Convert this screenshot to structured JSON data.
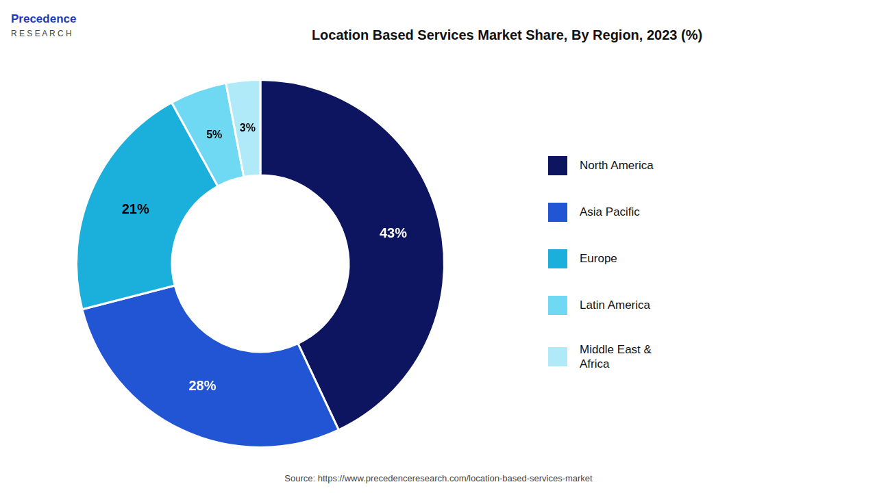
{
  "chart_data": {
    "type": "doughnut",
    "title": "Location Based Services Market Share, By Region, 2023 (%)",
    "categories": [
      "North America",
      "Asia Pacific",
      "Europe",
      "Latin America",
      "Middle East &\nAfrica"
    ],
    "values": [
      43,
      28,
      21,
      5,
      3
    ],
    "value_labels": [
      "43%",
      "28%",
      "21%",
      "5%",
      "3%"
    ],
    "data_labels": true,
    "colors": [
      "#0d1560",
      "#2255d4",
      "#1bb0dc",
      "#6fd8f2",
      "#b0eaf8"
    ],
    "legend": "right",
    "annotations": [
      "Precedence",
      "R E S E A R C H",
      "Source: https://www.precedenceresearch.com/location-based-services-market"
    ]
  }
}
